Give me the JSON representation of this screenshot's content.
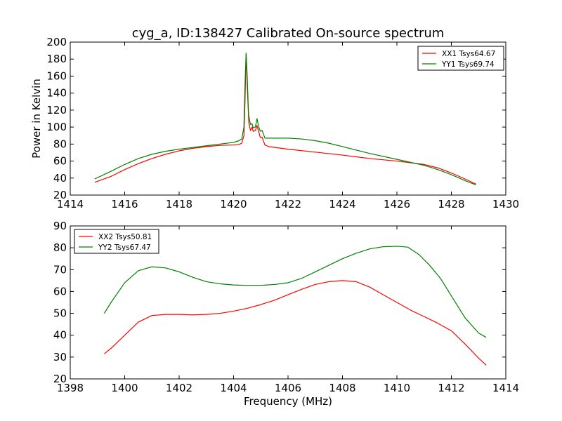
{
  "figure": {
    "title": "cyg_a, ID:138427 Calibrated On-source spectrum"
  },
  "chart_data": [
    {
      "type": "line",
      "title": "cyg_a, ID:138427 Calibrated On-source spectrum",
      "xlabel": "",
      "ylabel": "Power in Kelvin",
      "xlim": [
        1414,
        1430
      ],
      "ylim": [
        20,
        200
      ],
      "xticks": [
        1414,
        1416,
        1418,
        1420,
        1422,
        1424,
        1426,
        1428,
        1430
      ],
      "yticks": [
        20,
        40,
        60,
        80,
        100,
        120,
        140,
        160,
        180,
        200
      ],
      "grid": false,
      "legend": "top-right",
      "series": [
        {
          "name": "XX1 Tsys64.67",
          "color": "#ff0000",
          "points": [
            [
              1414.9,
              35
            ],
            [
              1415.5,
              42
            ],
            [
              1416,
              50
            ],
            [
              1416.5,
              57
            ],
            [
              1417,
              63
            ],
            [
              1417.5,
              68
            ],
            [
              1418,
              72
            ],
            [
              1418.5,
              75
            ],
            [
              1419,
              77
            ],
            [
              1419.5,
              78.5
            ],
            [
              1420,
              79
            ],
            [
              1420.2,
              79.5
            ],
            [
              1420.3,
              81
            ],
            [
              1420.38,
              90
            ],
            [
              1420.42,
              130
            ],
            [
              1420.46,
              186
            ],
            [
              1420.5,
              150
            ],
            [
              1420.56,
              105
            ],
            [
              1420.62,
              96
            ],
            [
              1420.68,
              100
            ],
            [
              1420.72,
              95
            ],
            [
              1420.8,
              96
            ],
            [
              1420.86,
              102
            ],
            [
              1420.92,
              95
            ],
            [
              1420.98,
              88
            ],
            [
              1421.05,
              88
            ],
            [
              1421.15,
              79
            ],
            [
              1421.3,
              77
            ],
            [
              1422,
              74
            ],
            [
              1423,
              70.5
            ],
            [
              1424,
              67
            ],
            [
              1425,
              63
            ],
            [
              1426,
              60
            ],
            [
              1427,
              56
            ],
            [
              1427.5,
              52
            ],
            [
              1428,
              46
            ],
            [
              1428.5,
              39
            ],
            [
              1428.9,
              33
            ]
          ]
        },
        {
          "name": "YY1 Tsys69.74",
          "color": "#008000",
          "points": [
            [
              1414.9,
              39
            ],
            [
              1415.5,
              48
            ],
            [
              1416,
              56
            ],
            [
              1416.5,
              63
            ],
            [
              1417,
              68
            ],
            [
              1417.5,
              71.5
            ],
            [
              1418,
              74
            ],
            [
              1418.5,
              76
            ],
            [
              1419,
              78
            ],
            [
              1419.5,
              80
            ],
            [
              1420,
              82
            ],
            [
              1420.2,
              84
            ],
            [
              1420.3,
              86
            ],
            [
              1420.38,
              100
            ],
            [
              1420.42,
              150
            ],
            [
              1420.46,
              187
            ],
            [
              1420.5,
              160
            ],
            [
              1420.55,
              115
            ],
            [
              1420.62,
              103
            ],
            [
              1420.68,
              104
            ],
            [
              1420.72,
              99
            ],
            [
              1420.8,
              100
            ],
            [
              1420.86,
              110
            ],
            [
              1420.92,
              101
            ],
            [
              1420.98,
              95
            ],
            [
              1421.05,
              96
            ],
            [
              1421.15,
              87
            ],
            [
              1422,
              87
            ],
            [
              1422.5,
              86
            ],
            [
              1423,
              84
            ],
            [
              1423.5,
              81
            ],
            [
              1424,
              77
            ],
            [
              1425,
              69
            ],
            [
              1426,
              62
            ],
            [
              1427,
              55
            ],
            [
              1427.5,
              50
            ],
            [
              1428,
              44
            ],
            [
              1428.5,
              37
            ],
            [
              1428.9,
              32
            ]
          ]
        }
      ]
    },
    {
      "type": "line",
      "title": "",
      "xlabel": "Frequency (MHz)",
      "ylabel": "",
      "xlim": [
        1398,
        1414
      ],
      "ylim": [
        20,
        90
      ],
      "xticks": [
        1398,
        1400,
        1402,
        1404,
        1406,
        1408,
        1410,
        1412,
        1414
      ],
      "yticks": [
        20,
        30,
        40,
        50,
        60,
        70,
        80,
        90
      ],
      "grid": false,
      "legend": "top-left",
      "series": [
        {
          "name": "XX2 Tsys50.81",
          "color": "#ff0000",
          "points": [
            [
              1399.25,
              31.5
            ],
            [
              1399.5,
              34
            ],
            [
              1400,
              40
            ],
            [
              1400.5,
              46
            ],
            [
              1401,
              49
            ],
            [
              1401.5,
              49.5
            ],
            [
              1402,
              49.5
            ],
            [
              1402.5,
              49.3
            ],
            [
              1403,
              49.5
            ],
            [
              1403.5,
              50
            ],
            [
              1404,
              51
            ],
            [
              1404.5,
              52.3
            ],
            [
              1405,
              54
            ],
            [
              1405.5,
              56
            ],
            [
              1406,
              58.5
            ],
            [
              1406.5,
              61
            ],
            [
              1407,
              63.2
            ],
            [
              1407.5,
              64.5
            ],
            [
              1408,
              65
            ],
            [
              1408.5,
              64.5
            ],
            [
              1409,
              62
            ],
            [
              1409.5,
              58.5
            ],
            [
              1410,
              55
            ],
            [
              1410.5,
              51.5
            ],
            [
              1411,
              48.5
            ],
            [
              1411.5,
              45.5
            ],
            [
              1412,
              42
            ],
            [
              1412.5,
              36
            ],
            [
              1413,
              29.5
            ],
            [
              1413.28,
              26.3
            ]
          ]
        },
        {
          "name": "YY2 Tsys67.47",
          "color": "#008000",
          "points": [
            [
              1399.25,
              50
            ],
            [
              1399.5,
              55
            ],
            [
              1400,
              64
            ],
            [
              1400.5,
              69.5
            ],
            [
              1401,
              71.3
            ],
            [
              1401.5,
              70.8
            ],
            [
              1402,
              69
            ],
            [
              1402.5,
              66.5
            ],
            [
              1403,
              64.5
            ],
            [
              1403.5,
              63.5
            ],
            [
              1404,
              63
            ],
            [
              1404.5,
              62.8
            ],
            [
              1405,
              62.8
            ],
            [
              1405.5,
              63.2
            ],
            [
              1406,
              64
            ],
            [
              1406.5,
              66
            ],
            [
              1407,
              69
            ],
            [
              1407.5,
              72
            ],
            [
              1408,
              75
            ],
            [
              1408.5,
              77.5
            ],
            [
              1409,
              79.5
            ],
            [
              1409.5,
              80.5
            ],
            [
              1410,
              80.7
            ],
            [
              1410.4,
              80.3
            ],
            [
              1410.8,
              77
            ],
            [
              1411.2,
              72
            ],
            [
              1411.6,
              66
            ],
            [
              1412,
              58
            ],
            [
              1412.5,
              48
            ],
            [
              1413,
              41
            ],
            [
              1413.28,
              39
            ]
          ]
        }
      ]
    }
  ]
}
